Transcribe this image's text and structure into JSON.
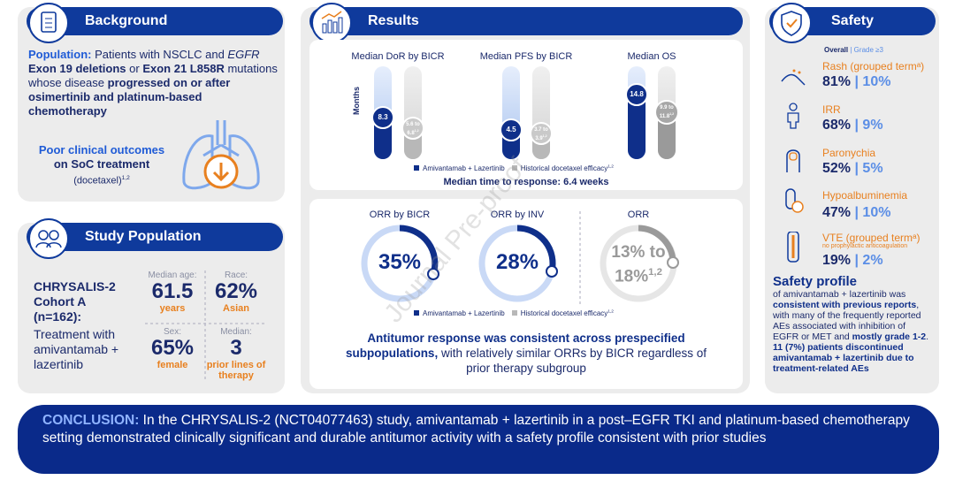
{
  "background": {
    "title": "Background",
    "population": [
      "Population:",
      " Patients with NSCLC and ",
      "EGFR",
      " Exon 19 deletions",
      " or ",
      "Exon 21 L858R",
      " mutations whose disease ",
      "progressed on or after osimertinib and platinum-based chemotherapy"
    ],
    "outcome": {
      "line1": "Poor clinical outcomes",
      "line2": "on SoC treatment",
      "note": "(docetaxel)",
      "note_sup": "1,2"
    }
  },
  "study_population": {
    "title": "Study Population",
    "cohort": "CHRYSALIS-2 Cohort A (n=162):",
    "treatment": "Treatment with amivantamab + lazertinib",
    "stats": [
      {
        "label": "Median age:",
        "value": "61.5",
        "unit": "years"
      },
      {
        "label": "Race:",
        "value": "62%",
        "unit": "Asian"
      },
      {
        "label": "Sex:",
        "value": "65%",
        "unit": "female"
      },
      {
        "label": "Median:",
        "value": "3",
        "unit": "prior lines of therapy"
      }
    ]
  },
  "results": {
    "title": "Results",
    "axis_label": "Months",
    "survival": [
      {
        "title": "Median DoR by BICR",
        "ami": "8.3",
        "hist": "5.6 to 6.8",
        "hist_sup": "1,2"
      },
      {
        "title": "Median PFS by BICR",
        "ami": "4.5",
        "hist": "3.7 to 3.9",
        "hist_sup": "1,2"
      },
      {
        "title": "Median OS",
        "ami": "14.8",
        "hist": "9.9 to 11.8",
        "hist_sup": "1,2"
      }
    ],
    "legend": [
      "Amivantamab + Lazertinib",
      "Historical docetaxel efficacy"
    ],
    "legend_sup": "1,2",
    "time_to_response": "Median time to response: 6.4 weeks",
    "orr": [
      {
        "title": "ORR by BICR",
        "value": "35%"
      },
      {
        "title": "ORR by INV",
        "value": "28%"
      },
      {
        "title": "ORR",
        "value": "13% to 18%",
        "sup": "1,2"
      }
    ],
    "statement": [
      "Antitumor response was consistent across prespecified subpopulations,",
      " with relatively similar ORRs by BICR regardless of prior therapy subgroup"
    ]
  },
  "safety": {
    "title": "Safety",
    "header": [
      "Overall",
      "| Grade ≥3"
    ],
    "events": [
      {
        "name": "Rash (grouped termᵃ)",
        "overall": "81%",
        "grade3": "10%"
      },
      {
        "name": "IRR",
        "overall": "68%",
        "grade3": "9%"
      },
      {
        "name": "Paronychia",
        "overall": "52%",
        "grade3": "5%"
      },
      {
        "name": "Hypoalbuminemia",
        "overall": "47%",
        "grade3": "10%"
      },
      {
        "name": "VTE (grouped termᵃ)",
        "note": "no prophylactic anticoagulation",
        "overall": "19%",
        "grade3": "2%"
      }
    ],
    "profile_title": "Safety profile",
    "profile": [
      "of amivantamab + lazertinib was ",
      "consistent with previous reports",
      ", with many of the frequently reported AEs associated with inhibition of EGFR or MET and ",
      "mostly grade 1-2",
      ". ",
      "11 (7%) patients discontinued amivantamab + lazertinib due to treatment-related AEs"
    ]
  },
  "conclusion": [
    "CONCLUSION:",
    " In the CHRYSALIS-2 (NCT04077463) study, amivantamab + lazertinib in a post–EGFR TKI and platinum-based chemotherapy setting demonstrated clinically significant and durable antitumor activity with a safety profile consistent with prior studies"
  ],
  "watermark": "Journal Pre-proof"
}
